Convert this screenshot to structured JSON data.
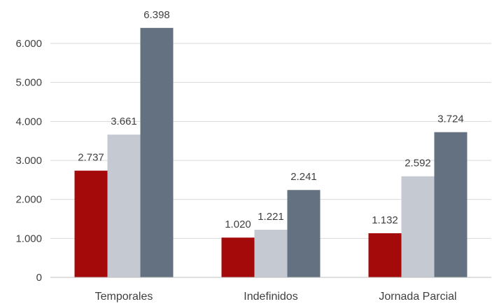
{
  "chart_data": {
    "type": "bar",
    "categories": [
      "Temporales",
      "Indefinidos",
      "Jornada Parcial"
    ],
    "series": [
      {
        "values": [
          2737,
          1020,
          1132
        ],
        "color": "#a50a0a"
      },
      {
        "values": [
          3661,
          1221,
          2592
        ],
        "color": "#c5cad2"
      },
      {
        "values": [
          6398,
          2241,
          3724
        ],
        "color": "#637181"
      }
    ],
    "value_labels": [
      [
        "2.737",
        "1.020",
        "1.132"
      ],
      [
        "3.661",
        "1.221",
        "2.592"
      ],
      [
        "6.398",
        "2.241",
        "3.724"
      ]
    ],
    "y_ticks": [
      0,
      1000,
      2000,
      3000,
      4000,
      5000,
      6000
    ],
    "y_tick_labels": [
      "0",
      "1.000",
      "2.000",
      "3.000",
      "4.000",
      "5.000",
      "6.000"
    ],
    "ylim": [
      0,
      7000
    ],
    "grid": true,
    "legend": "none"
  }
}
